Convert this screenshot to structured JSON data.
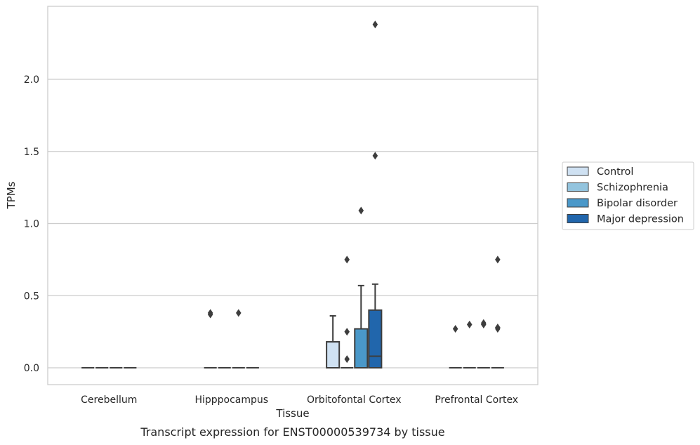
{
  "chart_data": {
    "type": "boxplot",
    "title": "",
    "caption": "Transcript expression for ENST00000539734 by tissue",
    "xlabel": "Tissue",
    "ylabel": "TPMs",
    "ylim": [
      -0.115,
      2.5
    ],
    "yticks": [
      0.0,
      0.5,
      1.0,
      1.5,
      2.0
    ],
    "ytick_labels": [
      "0.0",
      "0.5",
      "1.0",
      "1.5",
      "2.0"
    ],
    "grid": "horizontal",
    "legend_position": "right",
    "categories": [
      "Cerebellum",
      "Hipppocampus",
      "Orbitofontal Cortex",
      "Prefrontal Cortex"
    ],
    "series": [
      {
        "name": "Control",
        "color": "#cfe1f2",
        "boxes": [
          {
            "q1": 0,
            "median": 0,
            "q3": 0,
            "whisker_low": 0,
            "whisker_high": 0,
            "outliers": []
          },
          {
            "q1": 0,
            "median": 0,
            "q3": 0,
            "whisker_low": 0,
            "whisker_high": 0,
            "outliers": [
              0.37,
              0.38
            ]
          },
          {
            "q1": 0,
            "median": 0,
            "q3": 0.18,
            "whisker_low": 0,
            "whisker_high": 0.36,
            "outliers": []
          },
          {
            "q1": 0,
            "median": 0,
            "q3": 0,
            "whisker_low": 0,
            "whisker_high": 0,
            "outliers": [
              0.27
            ]
          }
        ]
      },
      {
        "name": "Schizophrenia",
        "color": "#93c4de",
        "boxes": [
          {
            "q1": 0,
            "median": 0,
            "q3": 0,
            "whisker_low": 0,
            "whisker_high": 0,
            "outliers": []
          },
          {
            "q1": 0,
            "median": 0,
            "q3": 0,
            "whisker_low": 0,
            "whisker_high": 0,
            "outliers": []
          },
          {
            "q1": 0,
            "median": 0,
            "q3": 0,
            "whisker_low": 0,
            "whisker_high": 0,
            "outliers": [
              0.06,
              0.25,
              0.75
            ]
          },
          {
            "q1": 0,
            "median": 0,
            "q3": 0,
            "whisker_low": 0,
            "whisker_high": 0,
            "outliers": [
              0.3
            ]
          }
        ]
      },
      {
        "name": "Bipolar disorder",
        "color": "#4a98c9",
        "boxes": [
          {
            "q1": 0,
            "median": 0,
            "q3": 0,
            "whisker_low": 0,
            "whisker_high": 0,
            "outliers": []
          },
          {
            "q1": 0,
            "median": 0,
            "q3": 0,
            "whisker_low": 0,
            "whisker_high": 0,
            "outliers": [
              0.38
            ]
          },
          {
            "q1": 0,
            "median": 0,
            "q3": 0.27,
            "whisker_low": 0,
            "whisker_high": 0.57,
            "outliers": [
              1.09
            ]
          },
          {
            "q1": 0,
            "median": 0,
            "q3": 0,
            "whisker_low": 0,
            "whisker_high": 0,
            "outliers": [
              0.31,
              0.3
            ]
          }
        ]
      },
      {
        "name": "Major depression",
        "color": "#2166ac",
        "boxes": [
          {
            "q1": 0,
            "median": 0,
            "q3": 0,
            "whisker_low": 0,
            "whisker_high": 0,
            "outliers": []
          },
          {
            "q1": 0,
            "median": 0,
            "q3": 0,
            "whisker_low": 0,
            "whisker_high": 0,
            "outliers": []
          },
          {
            "q1": 0,
            "median": 0.08,
            "q3": 0.4,
            "whisker_low": 0,
            "whisker_high": 0.58,
            "outliers": [
              1.47,
              2.38
            ]
          },
          {
            "q1": 0,
            "median": 0,
            "q3": 0,
            "whisker_low": 0,
            "whisker_high": 0,
            "outliers": [
              0.27,
              0.28,
              0.75
            ]
          }
        ]
      }
    ]
  }
}
